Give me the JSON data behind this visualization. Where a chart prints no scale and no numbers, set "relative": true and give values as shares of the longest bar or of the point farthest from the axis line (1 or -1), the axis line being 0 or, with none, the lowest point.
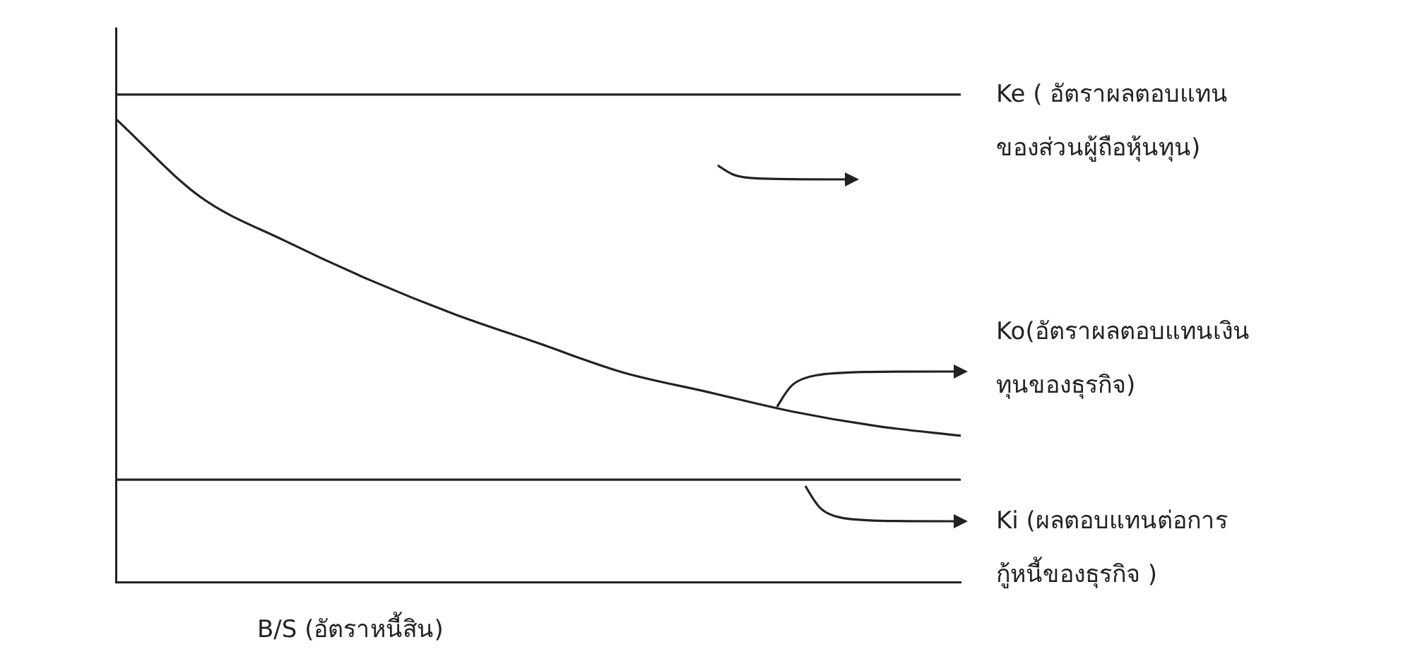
{
  "chart_data": {
    "type": "line",
    "relative": true,
    "xlabel": "B/S (อัตราหนี้สิน)",
    "categories": [
      null,
      null,
      null,
      null,
      null,
      null,
      null,
      null,
      null,
      null,
      null
    ],
    "series": [
      {
        "name": "Ke ( อัตราผลตอบแทน\nของส่วนผู้ถือหุ้นทุน)",
        "color": "#222222",
        "values": [
          1,
          1,
          1,
          1,
          1,
          1,
          1,
          1,
          1,
          1,
          1
        ]
      },
      {
        "name": "Ko(อัตราผลตอบแทนเงิน\nทุนของธุรกิจ)",
        "color": "#222222",
        "values": [
          0.95,
          0.79,
          0.7,
          0.62,
          0.55,
          0.49,
          0.43,
          0.39,
          0.35,
          0.32,
          0.3
        ]
      },
      {
        "name": "Ki (ผลตอบแทนต่อการ\nกู้หนี้ของธุรกิจ )",
        "color": "#222222",
        "values": [
          0.21,
          0.21,
          0.21,
          0.21,
          0.21,
          0.21,
          0.21,
          0.21,
          0.21,
          0.21,
          0.21
        ]
      }
    ],
    "legend": "right",
    "grid": false,
    "tick_labels": false,
    "marker": "none",
    "line_style": "solid"
  }
}
